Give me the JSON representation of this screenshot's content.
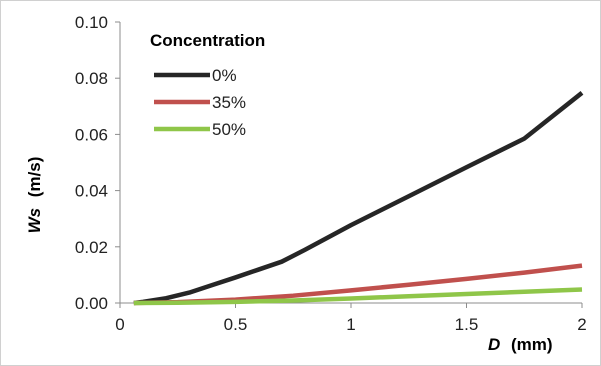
{
  "chart_data": {
    "type": "line",
    "xlabel_var": "D",
    "xlabel_unit": "(mm)",
    "ylabel_var": "Ws",
    "ylabel_unit": "(m/s)",
    "xlim": [
      0,
      2
    ],
    "ylim": [
      0,
      0.1
    ],
    "xticks": [
      "0",
      "0.5",
      "1",
      "1.5",
      "2"
    ],
    "yticks": [
      "0.00",
      "0.02",
      "0.04",
      "0.06",
      "0.08",
      "0.10"
    ],
    "grid": false,
    "legend": {
      "title": "Concentration",
      "placement": "top-left"
    },
    "series": [
      {
        "name": "0%",
        "color": "#262626",
        "x": [
          0.06,
          0.1,
          0.2,
          0.3,
          0.4,
          0.5,
          0.6,
          0.7,
          0.8,
          0.9,
          1.0,
          1.25,
          1.5,
          1.75,
          2.0
        ],
        "y": [
          0.0,
          0.0004,
          0.0017,
          0.0037,
          0.0064,
          0.0091,
          0.0119,
          0.0147,
          0.0189,
          0.0233,
          0.0277,
          0.038,
          0.0483,
          0.0585,
          0.0748
        ]
      },
      {
        "name": "35%",
        "color": "#c0504d",
        "x": [
          0.06,
          0.25,
          0.5,
          0.75,
          1.0,
          1.25,
          1.5,
          1.75,
          2.0
        ],
        "y": [
          0.0,
          0.0003,
          0.0012,
          0.0026,
          0.0045,
          0.0065,
          0.0086,
          0.0108,
          0.0133
        ]
      },
      {
        "name": "50%",
        "color": "#8fc649",
        "x": [
          0.06,
          0.25,
          0.5,
          0.75,
          1.0,
          1.25,
          1.5,
          1.75,
          2.0
        ],
        "y": [
          0.0,
          0.0001,
          0.0004,
          0.0009,
          0.0016,
          0.0024,
          0.0032,
          0.004,
          0.0048
        ]
      }
    ]
  }
}
